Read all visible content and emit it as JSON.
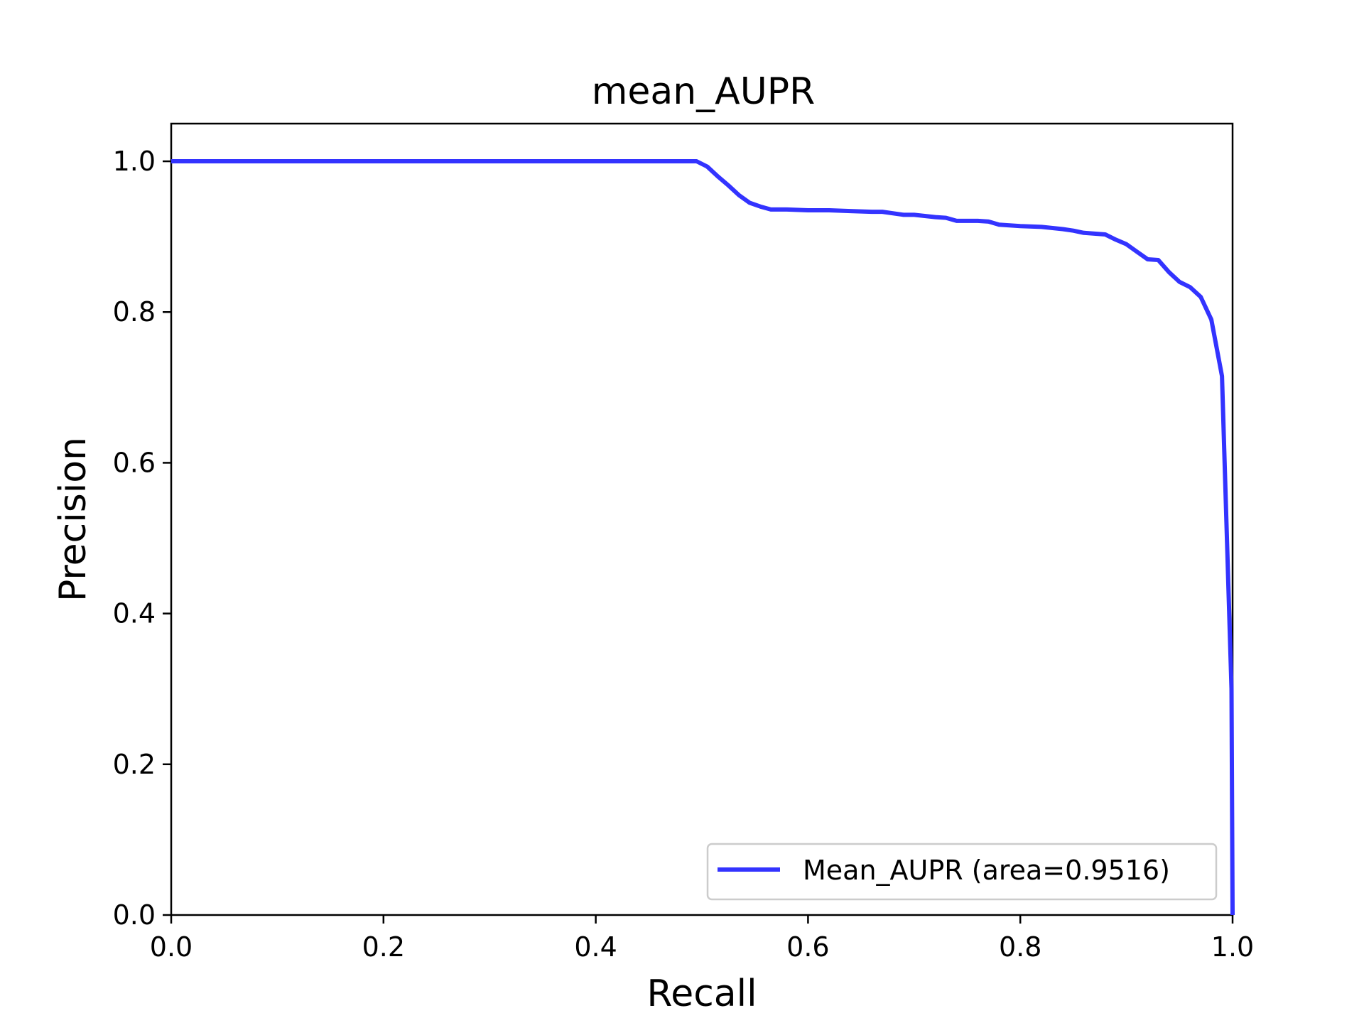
{
  "chart_data": {
    "type": "line",
    "title": "mean_AUPR",
    "xlabel": "Recall",
    "ylabel": "Precision",
    "xlim": [
      0.0,
      1.0
    ],
    "ylim": [
      0.0,
      1.05
    ],
    "xticks": [
      0.0,
      0.2,
      0.4,
      0.6,
      0.8,
      1.0
    ],
    "xtick_labels": [
      "0.0",
      "0.2",
      "0.4",
      "0.6",
      "0.8",
      "1.0"
    ],
    "yticks": [
      0.0,
      0.2,
      0.4,
      0.6,
      0.8,
      1.0
    ],
    "ytick_labels": [
      "0.0",
      "0.2",
      "0.4",
      "0.6",
      "0.8",
      "1.0"
    ],
    "grid": false,
    "legend_position": "lower-right",
    "series": [
      {
        "name": "Mean_AUPR (area=0.9516)",
        "color": "#3333ff",
        "x": [
          0.0,
          0.495,
          0.505,
          0.515,
          0.525,
          0.535,
          0.545,
          0.555,
          0.565,
          0.58,
          0.6,
          0.62,
          0.64,
          0.66,
          0.67,
          0.69,
          0.7,
          0.72,
          0.73,
          0.74,
          0.76,
          0.77,
          0.78,
          0.8,
          0.82,
          0.84,
          0.85,
          0.86,
          0.88,
          0.89,
          0.9,
          0.91,
          0.92,
          0.93,
          0.94,
          0.95,
          0.96,
          0.97,
          0.98,
          0.99,
          0.999,
          1.0
        ],
        "y": [
          1.0,
          1.0,
          0.993,
          0.98,
          0.968,
          0.955,
          0.945,
          0.94,
          0.936,
          0.936,
          0.935,
          0.935,
          0.934,
          0.933,
          0.933,
          0.929,
          0.929,
          0.926,
          0.925,
          0.921,
          0.921,
          0.92,
          0.916,
          0.914,
          0.913,
          0.91,
          0.908,
          0.905,
          0.903,
          0.896,
          0.89,
          0.88,
          0.87,
          0.869,
          0.853,
          0.84,
          0.833,
          0.82,
          0.79,
          0.715,
          0.3,
          0.0
        ]
      }
    ]
  }
}
